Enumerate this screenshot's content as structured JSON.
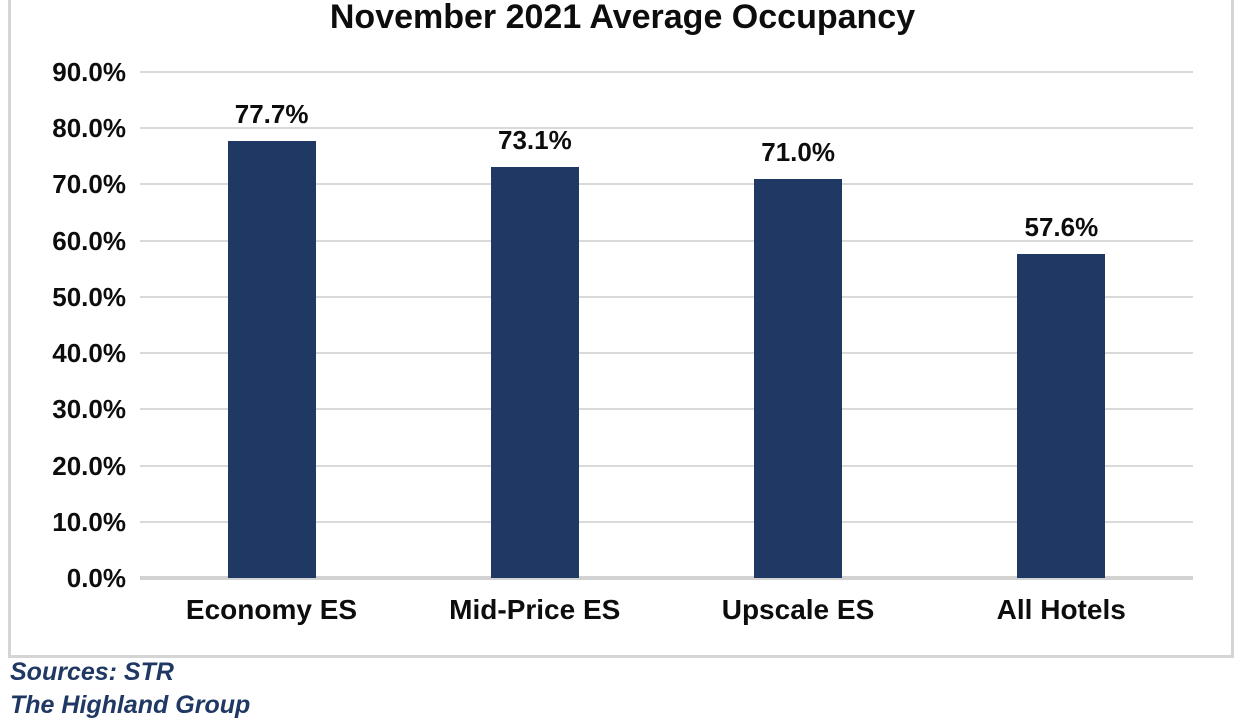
{
  "chart_data": {
    "type": "bar",
    "title": "November 2021 Average Occupancy",
    "categories": [
      "Economy ES",
      "Mid-Price ES",
      "Upscale ES",
      "All Hotels"
    ],
    "values": [
      77.7,
      73.1,
      71.0,
      57.6
    ],
    "value_labels": [
      "77.7%",
      "73.1%",
      "71.0%",
      "57.6%"
    ],
    "xlabel": "",
    "ylabel": "",
    "ylim": [
      0,
      90
    ],
    "ytick_values": [
      0,
      10,
      20,
      30,
      40,
      50,
      60,
      70,
      80,
      90
    ],
    "ytick_labels": [
      "0.0%",
      "10.0%",
      "20.0%",
      "30.0%",
      "40.0%",
      "50.0%",
      "60.0%",
      "70.0%",
      "80.0%",
      "90.0%"
    ],
    "grid": true,
    "legend": "none",
    "bar_color": "#1f3864",
    "gridline_color": "#d9d9d9",
    "axis_line_color": "#d2d2d2",
    "frame_border_color": "#d5d5d5",
    "text_color": "#0d0d0d"
  },
  "footer": {
    "sources_line1": "Sources: STR",
    "sources_line2": "The Highland Group",
    "text_color": "#1f3864"
  }
}
